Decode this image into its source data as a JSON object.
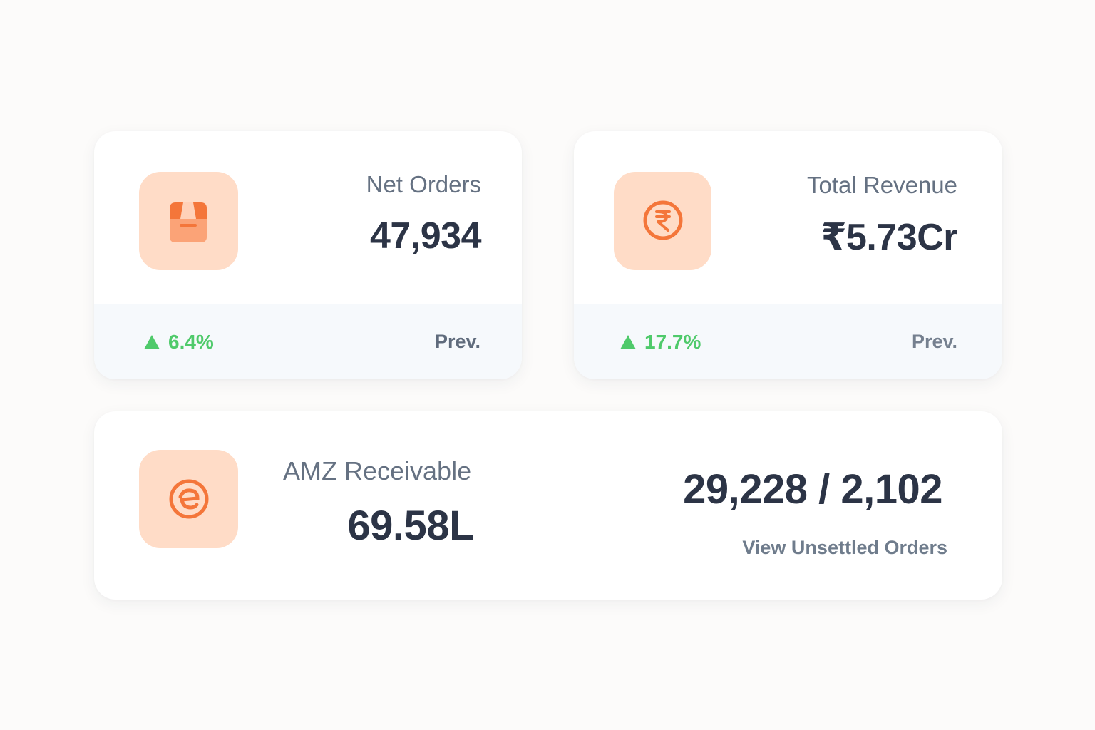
{
  "cards": {
    "net_orders": {
      "label": "Net Orders",
      "value": "47,934",
      "icon": "package-icon",
      "change": "6.4%",
      "change_direction": "up",
      "prev_label": "Prev."
    },
    "total_revenue": {
      "label": "Total Revenue",
      "value": "₹5.73Cr",
      "icon": "rupee-icon",
      "change": "17.7%",
      "change_direction": "up",
      "prev_label": "Prev."
    },
    "amz_receivable": {
      "label": "AMZ Receivable",
      "value": "69.58L",
      "icon": "amazon-receivable-icon",
      "orders_ratio": "29,228 / 2,102",
      "link_label": "View Unsettled Orders"
    }
  },
  "colors": {
    "accent": "#f4763a",
    "icon_tile": "#ffdcc7",
    "positive": "#4fca6b",
    "value_text": "#2c3446",
    "label_text": "#657182"
  }
}
